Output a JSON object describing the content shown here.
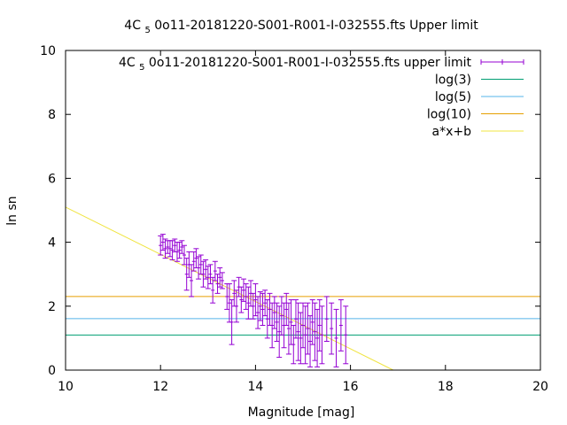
{
  "chart_data": {
    "type": "scatter",
    "title": "4C 5 0o11-20181220-S001-R001-I-032555.fts Upper limit",
    "title_main": "4C ",
    "title_sub": "5",
    "title_rest": " 0o11-20181220-S001-R001-I-032555.fts Upper limit",
    "xlabel": "Magnitude [mag]",
    "ylabel": "ln sn",
    "xlim": [
      10,
      20
    ],
    "ylim": [
      0,
      10
    ],
    "xticks": [
      10,
      12,
      14,
      16,
      18,
      20
    ],
    "yticks": [
      0,
      2,
      4,
      6,
      8,
      10
    ],
    "grid": false,
    "legend_position": "top-right",
    "legend": [
      {
        "label": "4C 5 0o11-20181220-S001-R001-I-032555.fts upper limit",
        "label_main": "4C ",
        "label_sub": "5",
        "label_rest": " 0o11-20181220-S001-R001-I-032555.fts upper limit",
        "style": "errorbar",
        "color": "#9400d3"
      },
      {
        "label": "log(3)",
        "style": "line",
        "color": "#009e73"
      },
      {
        "label": "log(5)",
        "style": "line",
        "color": "#56b4e9"
      },
      {
        "label": "log(10)",
        "style": "line",
        "color": "#e69f00"
      },
      {
        "label": "a*x+b",
        "style": "line",
        "color": "#f0e442"
      }
    ],
    "hlines": [
      {
        "name": "log(3)",
        "y": 1.0986,
        "color": "#009e73"
      },
      {
        "name": "log(5)",
        "y": 1.6094,
        "color": "#56b4e9"
      },
      {
        "name": "log(10)",
        "y": 2.3026,
        "color": "#e69f00"
      }
    ],
    "fit_line": {
      "name": "a*x+b",
      "x": [
        10,
        16.9
      ],
      "y": [
        5.1,
        0.0
      ],
      "color": "#f0e442"
    },
    "series": [
      {
        "name": "4C 5 0o11-20181220-S001-R001-I-032555.fts upper limit",
        "color": "#9400d3",
        "points": [
          {
            "x": 12.0,
            "y": 3.9,
            "err": 0.3
          },
          {
            "x": 12.05,
            "y": 4.0,
            "err": 0.25
          },
          {
            "x": 12.1,
            "y": 3.8,
            "err": 0.3
          },
          {
            "x": 12.15,
            "y": 3.85,
            "err": 0.2
          },
          {
            "x": 12.2,
            "y": 3.8,
            "err": 0.25
          },
          {
            "x": 12.25,
            "y": 3.75,
            "err": 0.3
          },
          {
            "x": 12.3,
            "y": 3.9,
            "err": 0.2
          },
          {
            "x": 12.35,
            "y": 3.7,
            "err": 0.3
          },
          {
            "x": 12.4,
            "y": 3.75,
            "err": 0.25
          },
          {
            "x": 12.45,
            "y": 3.85,
            "err": 0.2
          },
          {
            "x": 12.5,
            "y": 3.6,
            "err": 0.3
          },
          {
            "x": 12.55,
            "y": 3.0,
            "err": 0.5
          },
          {
            "x": 12.6,
            "y": 3.3,
            "err": 0.4
          },
          {
            "x": 12.65,
            "y": 2.8,
            "err": 0.5
          },
          {
            "x": 12.7,
            "y": 3.4,
            "err": 0.3
          },
          {
            "x": 12.75,
            "y": 3.5,
            "err": 0.3
          },
          {
            "x": 12.8,
            "y": 3.2,
            "err": 0.35
          },
          {
            "x": 12.85,
            "y": 3.3,
            "err": 0.3
          },
          {
            "x": 12.9,
            "y": 3.0,
            "err": 0.4
          },
          {
            "x": 12.95,
            "y": 3.15,
            "err": 0.3
          },
          {
            "x": 13.0,
            "y": 2.9,
            "err": 0.35
          },
          {
            "x": 13.05,
            "y": 3.0,
            "err": 0.3
          },
          {
            "x": 13.1,
            "y": 2.5,
            "err": 0.4
          },
          {
            "x": 13.15,
            "y": 3.1,
            "err": 0.3
          },
          {
            "x": 13.2,
            "y": 2.7,
            "err": 0.3
          },
          {
            "x": 13.25,
            "y": 2.9,
            "err": 0.3
          },
          {
            "x": 13.3,
            "y": 2.8,
            "err": 0.25
          },
          {
            "x": 13.4,
            "y": 2.3,
            "err": 0.4
          },
          {
            "x": 13.45,
            "y": 2.1,
            "err": 0.6
          },
          {
            "x": 13.5,
            "y": 1.5,
            "err": 0.7
          },
          {
            "x": 13.55,
            "y": 2.4,
            "err": 0.4
          },
          {
            "x": 13.6,
            "y": 2.0,
            "err": 0.5
          },
          {
            "x": 13.65,
            "y": 2.6,
            "err": 0.3
          },
          {
            "x": 13.7,
            "y": 2.2,
            "err": 0.4
          },
          {
            "x": 13.75,
            "y": 2.5,
            "err": 0.35
          },
          {
            "x": 13.8,
            "y": 2.3,
            "err": 0.4
          },
          {
            "x": 13.85,
            "y": 2.1,
            "err": 0.5
          },
          {
            "x": 13.9,
            "y": 2.4,
            "err": 0.4
          },
          {
            "x": 13.95,
            "y": 2.0,
            "err": 0.4
          },
          {
            "x": 14.0,
            "y": 2.2,
            "err": 0.5
          },
          {
            "x": 14.05,
            "y": 1.8,
            "err": 0.5
          },
          {
            "x": 14.1,
            "y": 2.0,
            "err": 0.45
          },
          {
            "x": 14.15,
            "y": 1.9,
            "err": 0.5
          },
          {
            "x": 14.2,
            "y": 2.1,
            "err": 0.4
          },
          {
            "x": 14.25,
            "y": 1.6,
            "err": 0.6
          },
          {
            "x": 14.3,
            "y": 1.9,
            "err": 0.5
          },
          {
            "x": 14.35,
            "y": 1.4,
            "err": 0.7
          },
          {
            "x": 14.4,
            "y": 1.8,
            "err": 0.5
          },
          {
            "x": 14.45,
            "y": 1.5,
            "err": 0.6
          },
          {
            "x": 14.5,
            "y": 1.2,
            "err": 0.8
          },
          {
            "x": 14.55,
            "y": 1.7,
            "err": 0.6
          },
          {
            "x": 14.6,
            "y": 1.4,
            "err": 0.7
          },
          {
            "x": 14.65,
            "y": 1.9,
            "err": 0.5
          },
          {
            "x": 14.7,
            "y": 1.3,
            "err": 0.8
          },
          {
            "x": 14.75,
            "y": 1.5,
            "err": 0.7
          },
          {
            "x": 14.8,
            "y": 0.8,
            "err": 0.6
          },
          {
            "x": 14.85,
            "y": 1.6,
            "err": 0.6
          },
          {
            "x": 14.9,
            "y": 1.2,
            "err": 0.9
          },
          {
            "x": 14.95,
            "y": 1.0,
            "err": 0.8
          },
          {
            "x": 15.0,
            "y": 1.4,
            "err": 0.7
          },
          {
            "x": 15.05,
            "y": 1.1,
            "err": 0.9
          },
          {
            "x": 15.1,
            "y": 1.3,
            "err": 0.8
          },
          {
            "x": 15.15,
            "y": 0.9,
            "err": 0.8
          },
          {
            "x": 15.2,
            "y": 1.5,
            "err": 0.7
          },
          {
            "x": 15.25,
            "y": 1.2,
            "err": 0.9
          },
          {
            "x": 15.3,
            "y": 1.0,
            "err": 0.9
          },
          {
            "x": 15.35,
            "y": 1.4,
            "err": 0.8
          },
          {
            "x": 15.4,
            "y": 1.1,
            "err": 0.9
          },
          {
            "x": 15.5,
            "y": 1.6,
            "err": 0.7
          },
          {
            "x": 15.6,
            "y": 1.3,
            "err": 0.8
          },
          {
            "x": 15.7,
            "y": 1.0,
            "err": 0.9
          },
          {
            "x": 15.8,
            "y": 1.4,
            "err": 0.8
          },
          {
            "x": 15.9,
            "y": 1.1,
            "err": 0.9
          }
        ]
      }
    ]
  }
}
